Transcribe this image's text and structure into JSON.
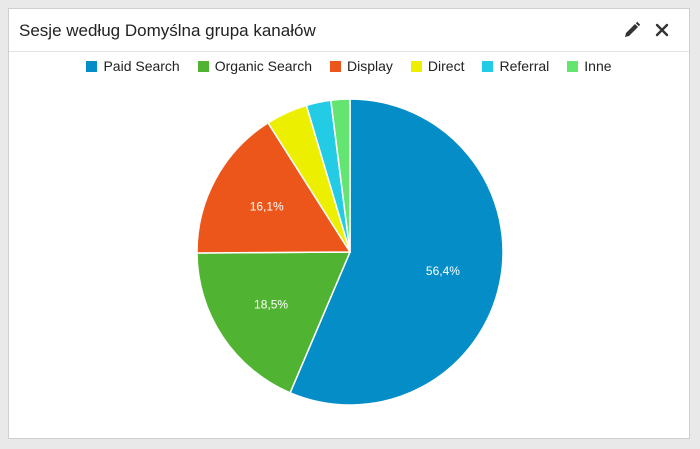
{
  "widget": {
    "title": "Sesje według Domyślna grupa kanałów",
    "edit_icon": "pencil-icon",
    "close_icon": "close-icon"
  },
  "chart_data": {
    "type": "pie",
    "title": "Sesje według Domyślna grupa kanałów",
    "legend_position": "top",
    "categories": [
      "Paid Search",
      "Organic Search",
      "Display",
      "Direct",
      "Referral",
      "Inne"
    ],
    "values": [
      56.4,
      18.5,
      16.1,
      4.4,
      2.6,
      2.0
    ],
    "labels": [
      "56,4%",
      "18,5%",
      "16,1%",
      "",
      "",
      ""
    ],
    "colors": [
      "#058dc7",
      "#50b432",
      "#ed561b",
      "#edef00",
      "#24cbe5",
      "#64e572"
    ]
  }
}
